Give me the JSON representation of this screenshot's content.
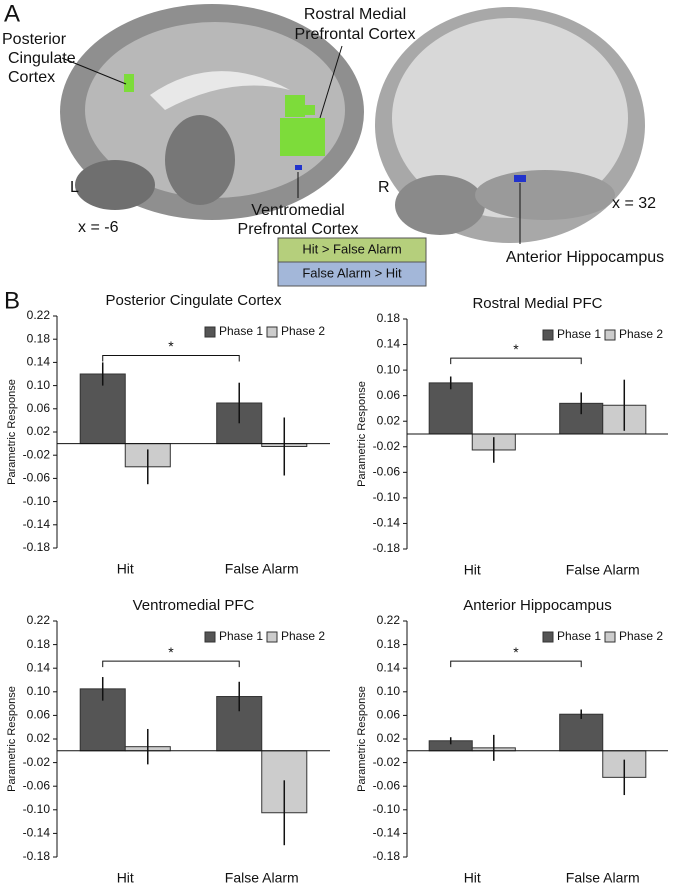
{
  "panel_a": {
    "label": "A",
    "pcc": [
      "Posterior",
      "Cingulate",
      "Cortex"
    ],
    "rmpfc": [
      "Rostral Medial",
      "Prefrontal Cortex"
    ],
    "vmpfc": [
      "Ventromedial",
      "Prefrontal Cortex"
    ],
    "ah": "Anterior Hippocampus",
    "left_hemi": "L",
    "right_hemi": "R",
    "left_slice": "x = -6",
    "right_slice": "x = 32",
    "legend": [
      "Hit > False Alarm",
      "False Alarm > Hit"
    ]
  },
  "panel_b": {
    "label": "B"
  },
  "chart_data": [
    {
      "type": "bar",
      "title": "Posterior Cingulate Cortex",
      "ylabel": "Parametric Response",
      "categories": [
        "Hit",
        "False Alarm"
      ],
      "series": [
        {
          "name": "Phase 1",
          "color": "#555555",
          "values": [
            0.12,
            0.07
          ],
          "errors": [
            0.02,
            0.035
          ]
        },
        {
          "name": "Phase 2",
          "color": "#cccccc",
          "values": [
            -0.04,
            -0.005
          ],
          "errors": [
            0.03,
            0.05
          ]
        }
      ],
      "ylim": [
        -0.18,
        0.22
      ],
      "yticks": [
        -0.18,
        -0.14,
        {
          "value": -0.1,
          "label": "-0.10"
        },
        -0.06,
        -0.02,
        0.02,
        0.06,
        {
          "value": 0.1,
          "label": "0.10"
        },
        0.14,
        0.18,
        0.22
      ],
      "annotation": "*"
    },
    {
      "type": "bar",
      "title": "Rostral Medial PFC",
      "ylabel": "Parametric Response",
      "categories": [
        "Hit",
        "False Alarm"
      ],
      "series": [
        {
          "name": "Phase 1",
          "color": "#555555",
          "values": [
            0.08,
            0.048
          ],
          "errors": [
            0.01,
            0.017
          ]
        },
        {
          "name": "Phase 2",
          "color": "#cccccc",
          "values": [
            -0.025,
            0.045
          ],
          "errors": [
            0.02,
            0.04
          ]
        }
      ],
      "ylim": [
        -0.18,
        0.18
      ],
      "yticks": [
        -0.18,
        -0.14,
        {
          "value": -0.1,
          "label": "-0.10"
        },
        -0.06,
        -0.02,
        0.02,
        0.06,
        {
          "value": 0.1,
          "label": "0.10"
        },
        0.14,
        0.18
      ],
      "annotation": "*"
    },
    {
      "type": "bar",
      "title": "Ventromedial PFC",
      "ylabel": "Parametric Response",
      "categories": [
        "Hit",
        "False Alarm"
      ],
      "series": [
        {
          "name": "Phase 1",
          "color": "#555555",
          "values": [
            0.105,
            0.092
          ],
          "errors": [
            0.02,
            0.025
          ]
        },
        {
          "name": "Phase 2",
          "color": "#cccccc",
          "values": [
            0.007,
            -0.105
          ],
          "errors": [
            0.03,
            0.055
          ]
        }
      ],
      "ylim": [
        -0.18,
        0.22
      ],
      "yticks": [
        -0.18,
        -0.14,
        {
          "value": -0.1,
          "label": "-0.10"
        },
        -0.06,
        -0.02,
        0.02,
        0.06,
        {
          "value": 0.1,
          "label": "0.10"
        },
        0.14,
        0.18,
        0.22
      ],
      "annotation": "*"
    },
    {
      "type": "bar",
      "title": "Anterior Hippocampus",
      "ylabel": "Parametric Response",
      "categories": [
        "Hit",
        "False Alarm"
      ],
      "series": [
        {
          "name": "Phase 1",
          "color": "#555555",
          "values": [
            0.017,
            0.062
          ],
          "errors": [
            0.006,
            0.008
          ]
        },
        {
          "name": "Phase 2",
          "color": "#cccccc",
          "values": [
            0.005,
            -0.045
          ],
          "errors": [
            0.022,
            0.03
          ]
        }
      ],
      "ylim": [
        -0.18,
        0.22
      ],
      "yticks": [
        -0.18,
        -0.14,
        {
          "value": -0.1,
          "label": "-0.10"
        },
        -0.06,
        -0.02,
        0.02,
        0.06,
        {
          "value": 0.1,
          "label": "0.10"
        },
        0.14,
        0.18,
        0.22
      ],
      "annotation": "*"
    }
  ]
}
